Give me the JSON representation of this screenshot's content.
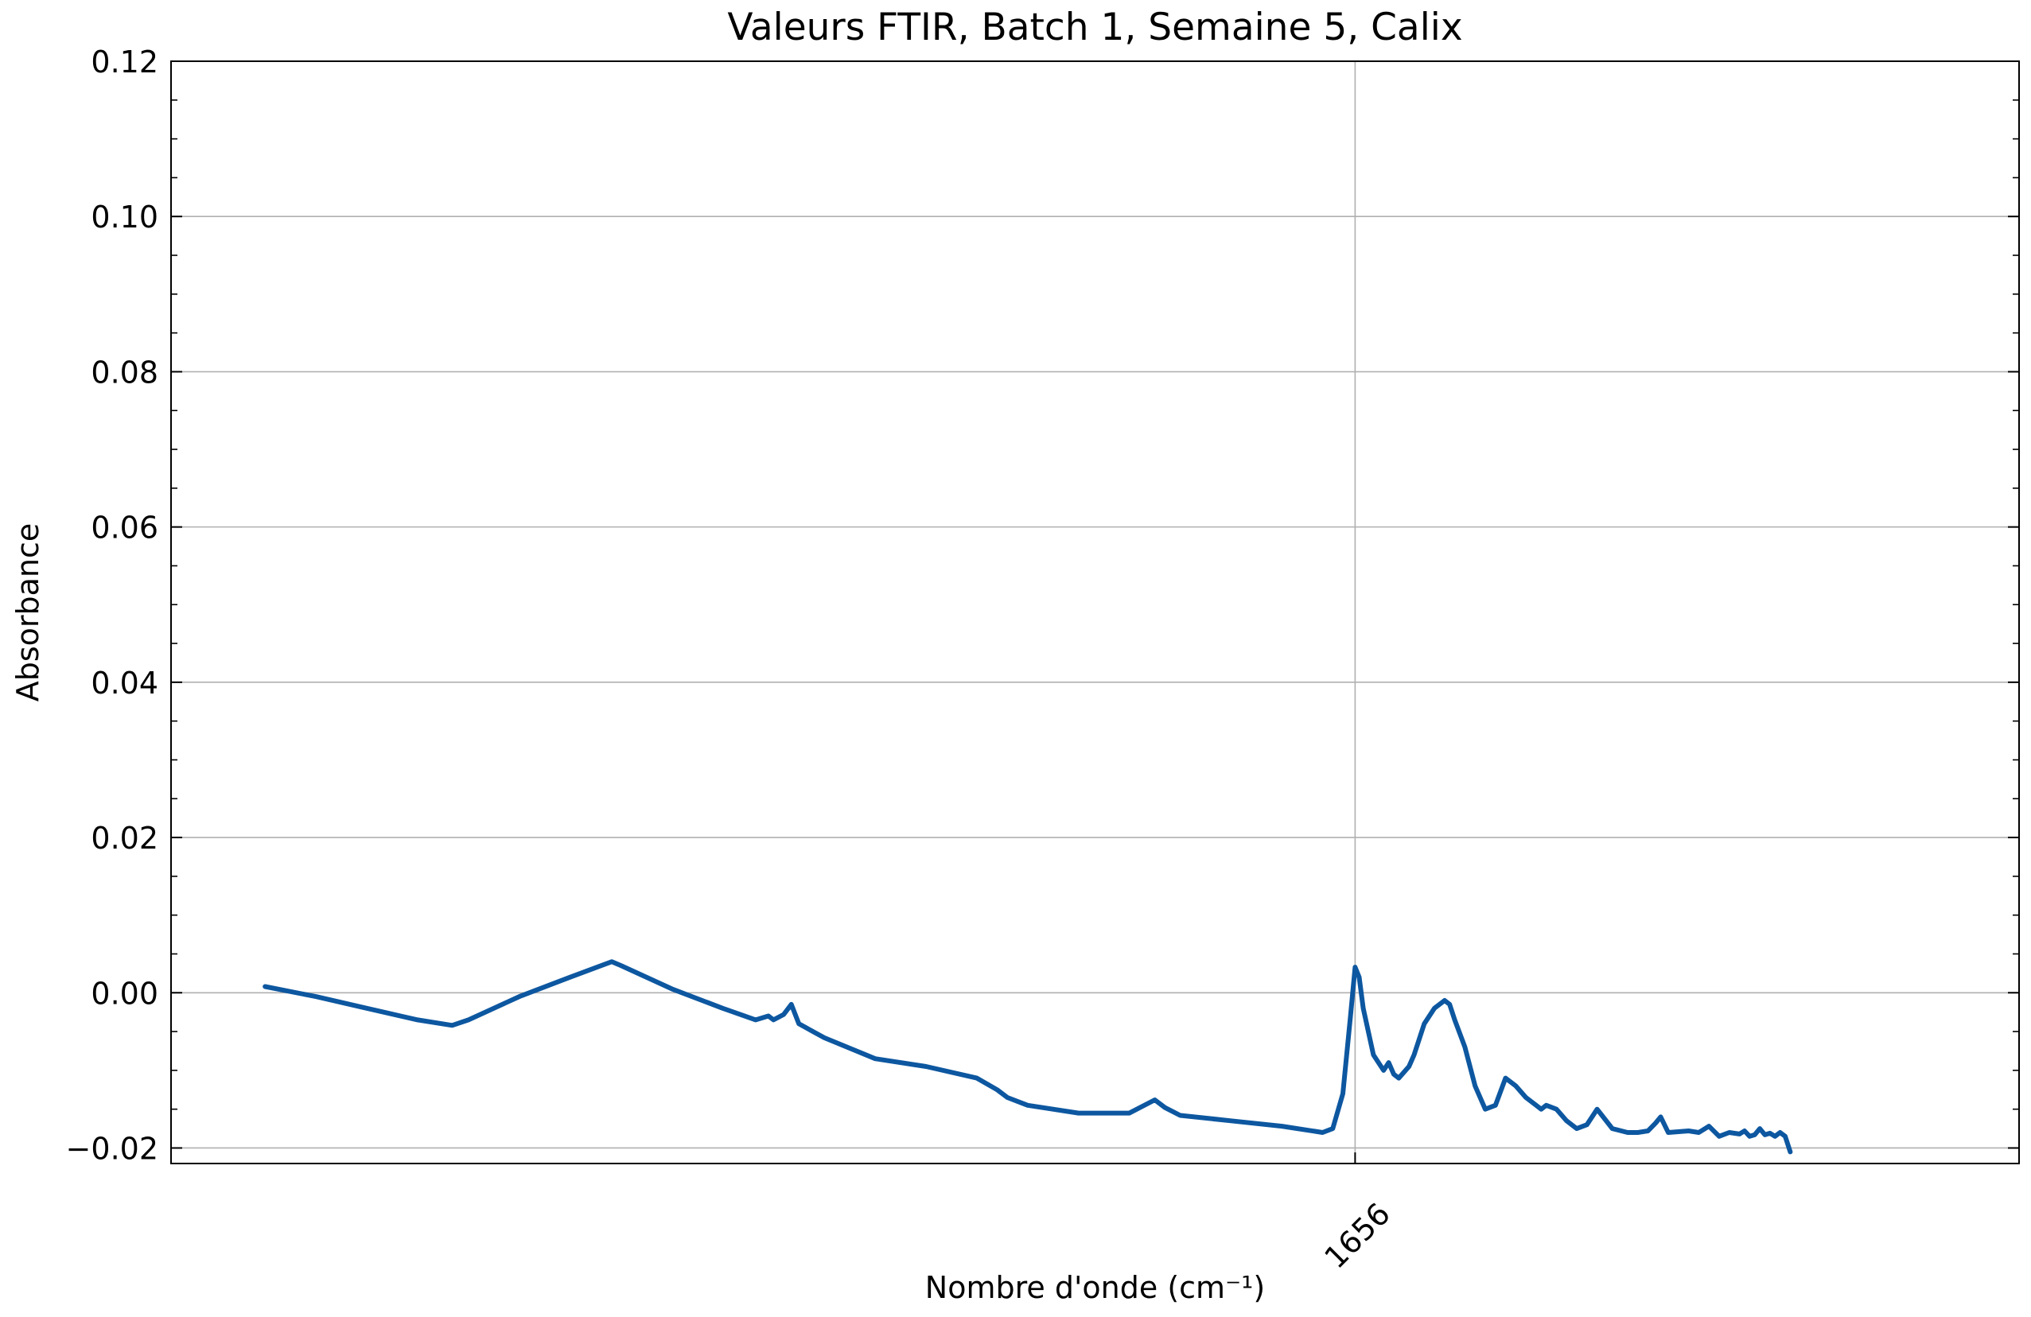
{
  "chart_data": {
    "type": "line",
    "title": "Valeurs FTIR, Batch 1, Semaine 5, Calix",
    "xlabel": "Nombre d'onde (cm⁻¹)",
    "ylabel": "Absorbance",
    "xlim": [
      3985,
      350
    ],
    "ylim": [
      -0.022,
      0.12
    ],
    "x_reversed": true,
    "grid": true,
    "x_ticks": [
      1656
    ],
    "x_tick_labels": [
      "1656"
    ],
    "y_ticks": [
      -0.02,
      0.0,
      0.02,
      0.04,
      0.06,
      0.08,
      0.1,
      0.12
    ],
    "y_tick_labels": [
      "−0.02",
      "0.00",
      "0.02",
      "0.04",
      "0.06",
      "0.08",
      "0.10",
      "0.12"
    ],
    "colors": {
      "series": "#0d57a0",
      "grid": "#b0b0b0",
      "axis": "#000000"
    },
    "series": [
      {
        "x": [
          3800,
          3700,
          3600,
          3500,
          3432,
          3400,
          3300,
          3200,
          3118,
          3100,
          3000,
          2900,
          2835,
          2810,
          2800,
          2780,
          2765,
          2750,
          2700,
          2600,
          2500,
          2400,
          2360,
          2340,
          2300,
          2200,
          2100,
          2050,
          2030,
          2000,
          1900,
          1800,
          1720,
          1700,
          1680,
          1665,
          1656,
          1648,
          1640,
          1620,
          1600,
          1590,
          1580,
          1570,
          1550,
          1540,
          1520,
          1500,
          1490,
          1480,
          1470,
          1460,
          1440,
          1420,
          1400,
          1380,
          1360,
          1340,
          1320,
          1300,
          1290,
          1280,
          1260,
          1240,
          1220,
          1200,
          1180,
          1150,
          1120,
          1100,
          1080,
          1065,
          1055,
          1040,
          1000,
          980,
          960,
          940,
          920,
          900,
          890,
          880,
          870,
          860,
          850,
          840,
          830,
          820,
          810,
          800
        ],
        "y": [
          0.0008,
          -0.0005,
          -0.002,
          -0.0035,
          -0.0042,
          -0.0035,
          -0.0005,
          0.002,
          0.004,
          0.0035,
          0.0005,
          -0.002,
          -0.0035,
          -0.003,
          -0.0035,
          -0.0028,
          -0.0015,
          -0.004,
          -0.0058,
          -0.0085,
          -0.0095,
          -0.011,
          -0.0125,
          -0.0135,
          -0.0145,
          -0.0155,
          -0.0155,
          -0.0138,
          -0.0148,
          -0.0158,
          -0.0165,
          -0.0172,
          -0.018,
          -0.0175,
          -0.013,
          -0.003,
          0.0033,
          0.002,
          -0.002,
          -0.008,
          -0.01,
          -0.009,
          -0.0105,
          -0.011,
          -0.0095,
          -0.008,
          -0.004,
          -0.002,
          -0.0015,
          -0.001,
          -0.0015,
          -0.0035,
          -0.007,
          -0.012,
          -0.015,
          -0.0145,
          -0.011,
          -0.012,
          -0.0135,
          -0.0145,
          -0.015,
          -0.0145,
          -0.015,
          -0.0165,
          -0.0175,
          -0.017,
          -0.015,
          -0.0175,
          -0.018,
          -0.018,
          -0.0178,
          -0.0168,
          -0.016,
          -0.018,
          -0.0178,
          -0.018,
          -0.0172,
          -0.0185,
          -0.018,
          -0.0182,
          -0.0178,
          -0.0185,
          -0.0183,
          -0.0175,
          -0.0183,
          -0.0181,
          -0.0185,
          -0.018,
          -0.0185,
          -0.0205
        ]
      }
    ]
  }
}
